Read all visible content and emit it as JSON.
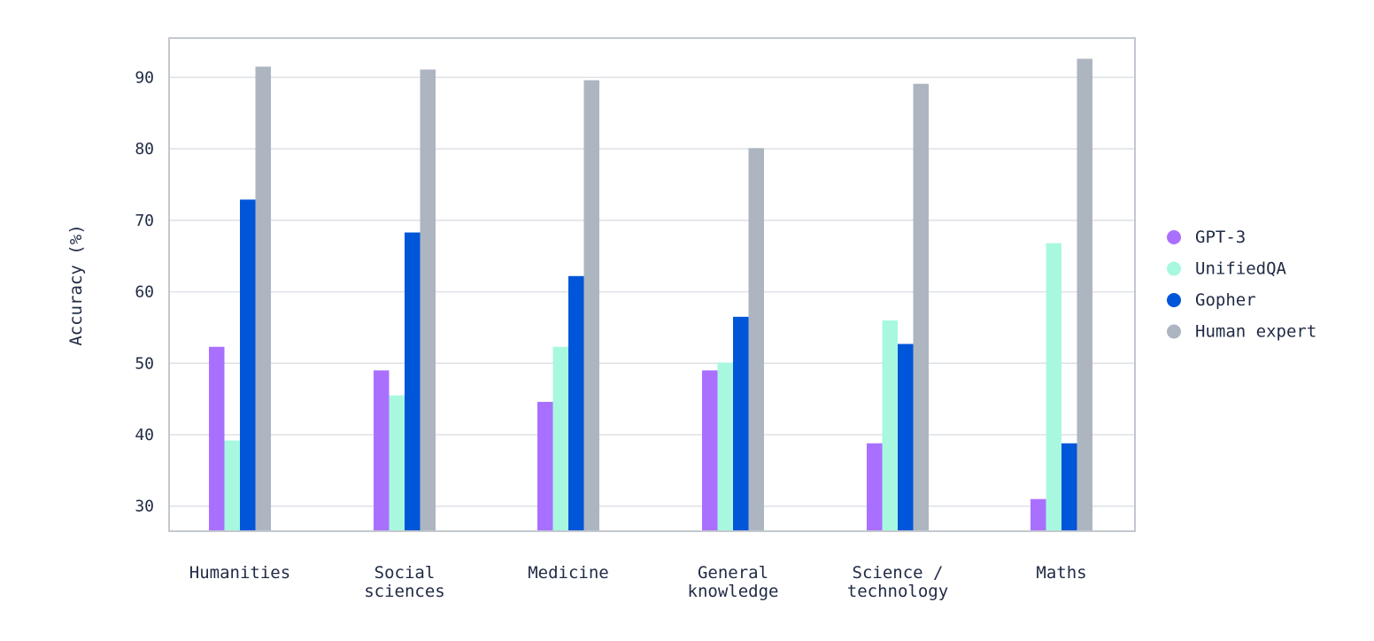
{
  "chart_data": {
    "type": "bar",
    "title": "",
    "xlabel": "",
    "ylabel": "Accuracy (%)",
    "ylim": [
      26.5,
      95.5
    ],
    "yticks": [
      30,
      40,
      50,
      60,
      70,
      80,
      90
    ],
    "grid": true,
    "legend_position": "right",
    "categories": [
      [
        "Humanities"
      ],
      [
        "Social",
        "sciences"
      ],
      [
        "Medicine"
      ],
      [
        "General",
        "knowledge"
      ],
      [
        "Science /",
        "technology"
      ],
      [
        "Maths"
      ]
    ],
    "series": [
      {
        "name": "GPT-3",
        "color": "#a970ff",
        "values": [
          52.3,
          49.0,
          44.6,
          49.0,
          38.8,
          31.0
        ]
      },
      {
        "name": "UnifiedQA",
        "color": "#a8f8e0",
        "values": [
          39.2,
          45.5,
          52.3,
          50.1,
          56.0,
          66.8
        ]
      },
      {
        "name": "Gopher",
        "color": "#0056d8",
        "values": [
          72.9,
          68.3,
          62.2,
          56.5,
          52.7,
          38.8
        ]
      },
      {
        "name": "Human expert",
        "color": "#adb5c1",
        "values": [
          91.5,
          91.1,
          89.6,
          80.1,
          89.1,
          92.6
        ]
      }
    ]
  }
}
